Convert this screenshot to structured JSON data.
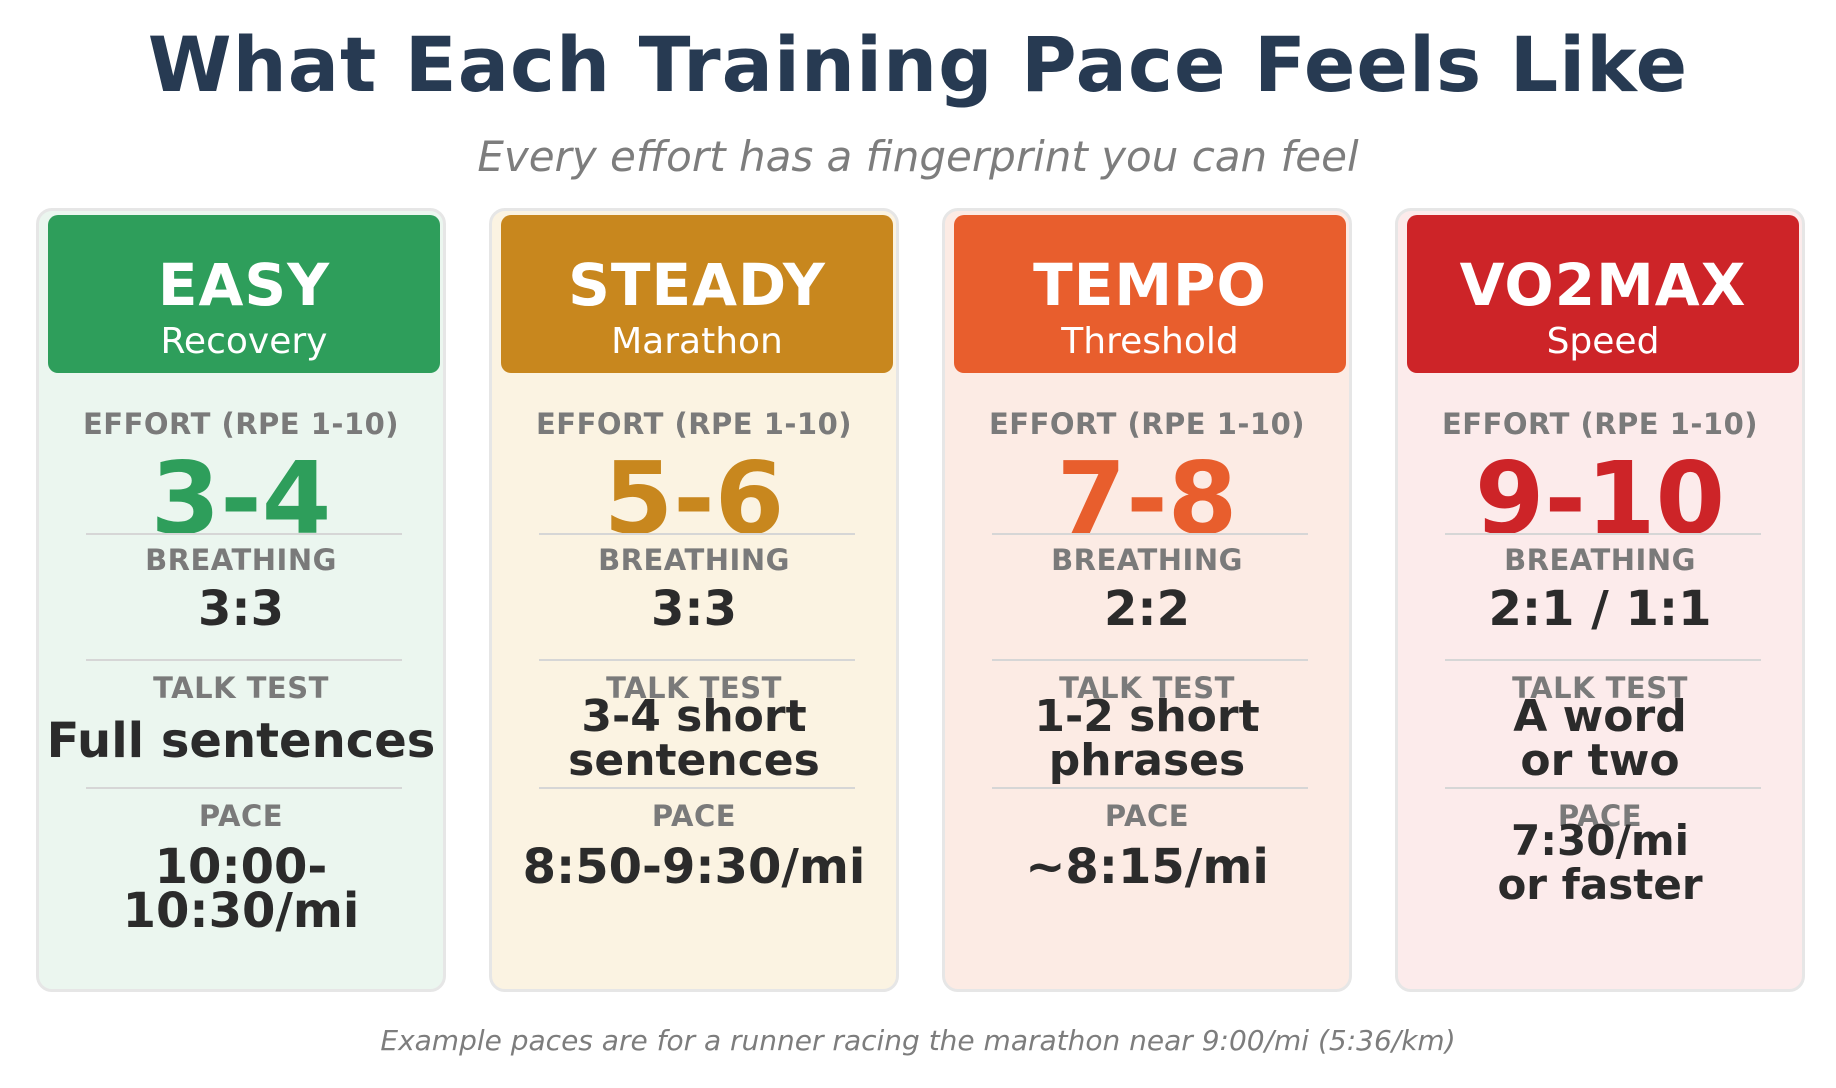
{
  "title": "What Each Training Pace Feels Like",
  "subtitle": "Every effort has a fingerprint you can feel",
  "labels": {
    "effort": "EFFORT (RPE 1-10)",
    "breathing": "BREATHING",
    "talk_test": "TALK TEST",
    "pace": "PACE"
  },
  "cards": [
    {
      "zone": "EASY",
      "subtitle": "Recovery",
      "effort": "3-4",
      "breathing": "3:3",
      "talk_test": [
        "Full sentences"
      ],
      "pace": [
        "10:00-10:30/mi"
      ],
      "colors": {
        "header": "#2e9e5b",
        "accent": "#2e9e5b",
        "background": "#ebf6ef"
      }
    },
    {
      "zone": "STEADY",
      "subtitle": "Marathon",
      "effort": "5-6",
      "breathing": "3:3",
      "talk_test": [
        "3-4 short",
        "sentences"
      ],
      "pace": [
        "8:50-9:30/mi"
      ],
      "colors": {
        "header": "#c8871e",
        "accent": "#c8871e",
        "background": "#fbf3e2"
      }
    },
    {
      "zone": "TEMPO",
      "subtitle": "Threshold",
      "effort": "7-8",
      "breathing": "2:2",
      "talk_test": [
        "1-2 short",
        "phrases"
      ],
      "pace": [
        "~8:15/mi"
      ],
      "colors": {
        "header": "#e85e2d",
        "accent": "#e85e2d",
        "background": "#fcebe4"
      }
    },
    {
      "zone": "VO2MAX",
      "subtitle": "Speed",
      "effort": "9-10",
      "breathing": "2:1 / 1:1",
      "talk_test": [
        "A word",
        "or two"
      ],
      "pace": [
        "7:30/mi",
        "or faster"
      ],
      "colors": {
        "header": "#cd2428",
        "accent": "#cd2428",
        "background": "#fcebeb"
      }
    }
  ],
  "footnote": "Example paces are for a runner racing the marathon near 9:00/mi (5:36/km)"
}
